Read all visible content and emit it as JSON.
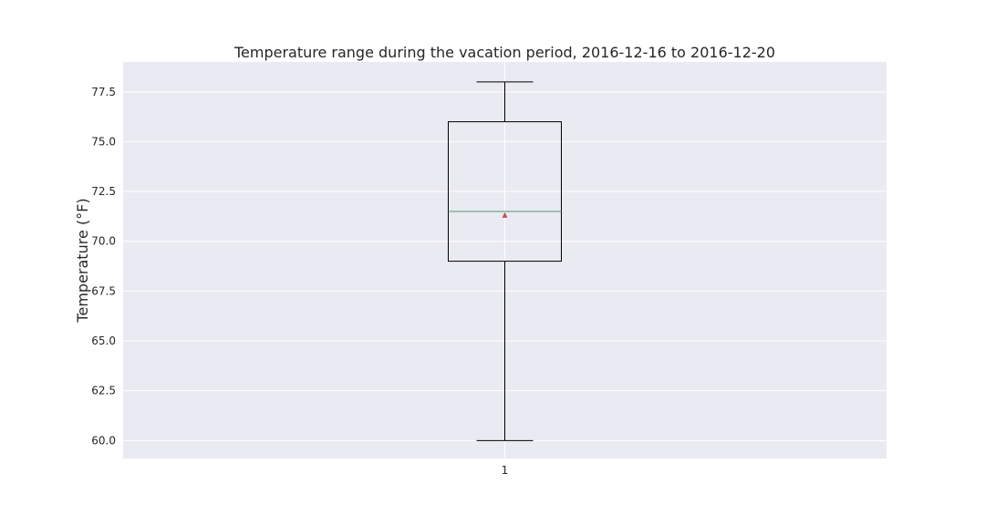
{
  "chart_data": {
    "type": "box",
    "title": "Temperature range during the vacation period, 2016-12-16 to 2016-12-20",
    "xlabel": "",
    "ylabel": "Temperature (°F)",
    "categories": [
      "1"
    ],
    "ylim": [
      59.1,
      79.0
    ],
    "yticks": [
      60.0,
      62.5,
      65.0,
      67.5,
      70.0,
      72.5,
      75.0,
      77.5
    ],
    "ytick_labels": [
      "60.0",
      "62.5",
      "65.0",
      "67.5",
      "70.0",
      "72.5",
      "75.0",
      "77.5"
    ],
    "boxes": [
      {
        "category": "1",
        "whisker_low": 60.0,
        "q1": 69.0,
        "median": 71.5,
        "q3": 76.0,
        "whisker_high": 78.0,
        "mean": 71.3
      }
    ],
    "grid": true,
    "colors": {
      "background": "#eaeaf2",
      "grid": "#ffffff",
      "box": "#000000",
      "median": "#4c9a6a",
      "mean": "#c44e52"
    }
  }
}
